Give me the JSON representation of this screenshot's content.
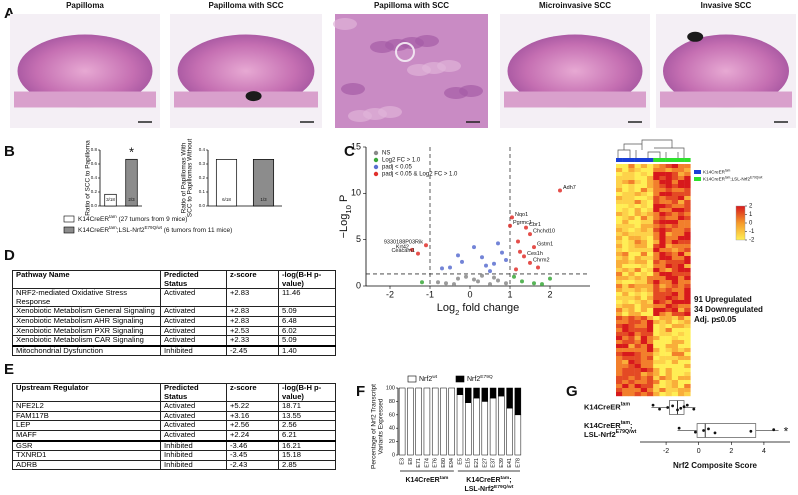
{
  "panel_labels": [
    "A",
    "B",
    "C",
    "D",
    "E",
    "F",
    "G"
  ],
  "images": [
    {
      "title": "Papilloma"
    },
    {
      "title": "Papilloma with SCC"
    },
    {
      "title": "Papilloma with SCC"
    },
    {
      "title": "Microinvasive SCC"
    },
    {
      "title": "Invasive SCC"
    }
  ],
  "panel_b_legend": [
    {
      "color": "#ffffff",
      "label": [
        {
          "text": "K14CreER"
        },
        {
          "text": "tam",
          "sup": true
        },
        {
          "text": " (27 tumors from 9 mice)"
        }
      ]
    },
    {
      "color": "#8c8c8c",
      "label": [
        {
          "text": "K14CreER"
        },
        {
          "text": "tam",
          "sup": true
        },
        {
          "text": ";LSL-Nrf2"
        },
        {
          "text": "E79Q/wt",
          "sup": true
        },
        {
          "text": " (6 tumors from 11 mice)"
        }
      ]
    }
  ],
  "chart_data": [
    {
      "type": "bar",
      "ylabel": [
        "Ratio of SCC to Papilloma"
      ],
      "categories": [
        null,
        null
      ],
      "values": [
        0.167,
        0.667
      ],
      "value_labels": [
        "3/18",
        "2/3"
      ],
      "colors": [
        "#ffffff",
        "#8c8c8c"
      ],
      "annotation": "*",
      "ylim": [
        0,
        0.8
      ],
      "yticks": [
        {
          "value": 0,
          "label": "0.0"
        },
        {
          "value": 0.2,
          "label": "0.2"
        },
        {
          "value": 0.4,
          "label": "0.4"
        },
        {
          "value": 0.6,
          "label": "0.6"
        },
        {
          "value": 0.8,
          "label": "0.8"
        }
      ]
    },
    {
      "type": "bar",
      "ylabel": [
        "Ratio of Papillomas With",
        "SCC to Papillomas Without"
      ],
      "categories": [
        null,
        null
      ],
      "values": [
        0.333,
        0.333
      ],
      "value_labels": [
        "6/18",
        "1/3"
      ],
      "colors": [
        "#ffffff",
        "#8c8c8c"
      ],
      "ylim": [
        0,
        0.4
      ],
      "yticks": [
        {
          "value": 0,
          "label": "0.0"
        },
        {
          "value": 0.1,
          "label": "0.1"
        },
        {
          "value": 0.2,
          "label": "0.2"
        },
        {
          "value": 0.3,
          "label": "0.3"
        },
        {
          "value": 0.4,
          "label": "0.4"
        }
      ]
    },
    {
      "type": "volcano",
      "xlabel": [
        {
          "text": "Log"
        },
        {
          "text": "2",
          "sub": true
        },
        {
          "text": " fold  change"
        }
      ],
      "ylabel": [
        {
          "text": "−Log"
        },
        {
          "text": "10",
          "sub": true
        },
        {
          "text": " P"
        }
      ],
      "xlim": [
        -2.6,
        3.0
      ],
      "xticks": [
        -2,
        -1,
        0,
        1,
        2
      ],
      "ylim": [
        0,
        15
      ],
      "yticks": [
        0,
        5,
        10,
        15
      ],
      "thresholds": {
        "x": [
          -1,
          1
        ],
        "y": 1.3
      },
      "series": [
        {
          "name": "NS",
          "color": "#8a8a8a",
          "x": [
            -0.6,
            -0.3,
            0.2,
            0.5,
            -0.1,
            0.7,
            -0.8,
            0.3,
            0.9,
            -0.4,
            0.1,
            0.6
          ],
          "y": [
            0.3,
            0.8,
            0.5,
            0.2,
            1.0,
            0.6,
            0.4,
            1.1,
            0.3,
            0.2,
            0.7,
            0.9
          ]
        },
        {
          "name": "Log2 FC > 1.0",
          "color": "#3aa83a",
          "x": [
            1.3,
            1.6,
            2.0,
            -1.2,
            1.1,
            1.8
          ],
          "y": [
            0.5,
            0.3,
            0.8,
            0.4,
            1.0,
            0.2
          ]
        },
        {
          "name": "padj < 0.05",
          "color": "#5a6fd0",
          "x": [
            -0.5,
            -0.2,
            0.3,
            0.6,
            0.8,
            -0.7,
            0.1,
            0.4,
            -0.3,
            0.7,
            0.9,
            0.5
          ],
          "y": [
            2.0,
            2.6,
            3.1,
            2.4,
            3.6,
            1.9,
            4.2,
            2.2,
            3.3,
            4.6,
            2.8,
            1.6
          ]
        },
        {
          "name": "padj < 0.05 & Log2 FC > 1.0",
          "color": "#e0302c",
          "x": [
            2.25,
            1.05,
            1.0,
            1.4,
            1.5,
            1.6,
            1.25,
            1.5,
            -1.45,
            -1.3,
            -1.1,
            1.2,
            1.7,
            1.35,
            1.15
          ],
          "y": [
            10.3,
            7.4,
            6.5,
            6.3,
            5.6,
            4.2,
            3.7,
            2.5,
            3.9,
            3.5,
            4.4,
            4.8,
            2.0,
            3.2,
            1.8
          ],
          "labels": [
            "Adh7",
            "Nqo1",
            "Pgrmc1",
            "Cbr1",
            "Chchd10",
            "Gstm1",
            null,
            "Chrm2",
            "Krt42",
            "Ceacam1",
            "9330188P03Rik",
            null,
            null,
            "Ces1h",
            null
          ]
        }
      ]
    },
    {
      "type": "stacked_bar",
      "ylabel": [
        "Percentage of Nrf2 Transcript",
        "Variants Expressed"
      ],
      "categories": [
        "E3",
        "E8",
        "E71",
        "E74",
        "E76",
        "E80",
        "E94",
        "E5",
        "E15",
        "E21",
        "E27",
        "E37",
        "E39",
        "E41",
        "E78"
      ],
      "groups": [
        {
          "size": 7,
          "label": [
            [
              {
                "text": "K14CreER"
              },
              {
                "text": "tam",
                "sup": true
              }
            ]
          ]
        },
        {
          "size": 8,
          "label": [
            [
              {
                "text": "K14CreER"
              },
              {
                "text": "tam",
                "sup": true
              },
              {
                "text": ";"
              }
            ],
            [
              {
                "text": "LSL-Nrf2"
              },
              {
                "text": "E79Q/wt",
                "sup": true
              }
            ]
          ]
        }
      ],
      "series": [
        {
          "name": [
            {
              "text": "Nrf2"
            },
            {
              "text": "wt",
              "sup": true
            }
          ],
          "color": "#ffffff",
          "values": [
            100,
            100,
            100,
            100,
            100,
            100,
            100,
            90,
            78,
            85,
            80,
            85,
            88,
            70,
            60
          ]
        },
        {
          "name": [
            {
              "text": "Nrf2"
            },
            {
              "text": "E79Q",
              "sup": true
            }
          ],
          "color": "#000000",
          "values": [
            0,
            0,
            0,
            0,
            0,
            0,
            0,
            10,
            22,
            15,
            20,
            15,
            12,
            30,
            40
          ]
        }
      ],
      "ylim": [
        0,
        100
      ],
      "yticks": [
        0,
        20,
        40,
        60,
        80,
        100
      ]
    },
    {
      "type": "box",
      "xlabel": "Nrf2 Composite Score",
      "xlim": [
        -3.6,
        5.6
      ],
      "xticks": [
        -2,
        0,
        2,
        4
      ],
      "groups": [
        {
          "label": [
            [
              {
                "text": "K14CreER"
              },
              {
                "text": "tam",
                "sup": true
              }
            ]
          ],
          "min": -2.9,
          "q1": -1.8,
          "median": -1.3,
          "q3": -0.9,
          "max": -0.2,
          "points": [
            -2.8,
            -2.4,
            -1.9,
            -1.6,
            -1.3,
            -1.1,
            -0.9,
            -0.7,
            -0.3
          ]
        },
        {
          "label": [
            [
              {
                "text": "K14CreER"
              },
              {
                "text": "tam",
                "sup": true
              },
              {
                "text": ";"
              }
            ],
            [
              {
                "text": "LSL-Nrf2"
              },
              {
                "text": "E79Q/wt",
                "sup": true
              }
            ]
          ],
          "min": -1.3,
          "q1": -0.1,
          "median": 0.4,
          "q3": 3.5,
          "max": 4.9,
          "annotation": "*",
          "points": [
            -1.2,
            -0.2,
            0.3,
            0.6,
            1.0,
            3.2,
            4.6
          ]
        }
      ]
    }
  ],
  "heatmap": {
    "legend": [
      {
        "color": "#1a3fd6",
        "label": [
          {
            "text": "K14CreER"
          },
          {
            "text": "tam",
            "sup": true
          }
        ]
      },
      {
        "color": "#2ee02e",
        "label": [
          {
            "text": "K14CreER"
          },
          {
            "text": "tam",
            "sup": true
          },
          {
            "text": ";LSL-Nrf2"
          },
          {
            "text": "E79Q/wt",
            "sup": true
          }
        ]
      }
    ],
    "colorbar_range": [
      -2,
      2
    ],
    "colorbar_ticks": [
      2,
      1,
      0,
      {
        "value": -1,
        "label": "-1"
      },
      {
        "value": -2,
        "label": "-2"
      }
    ],
    "notes": [
      "91 Upregulated",
      "34 Downregulated",
      "Adj. p≤0.05"
    ]
  },
  "tables": [
    {
      "header": [
        "Pathway Name",
        "Predicted Status",
        "z-score",
        "-log(B-H p-value)"
      ],
      "rows": [
        [
          "NRF2-mediated Oxidative Stress Response",
          "Activated",
          "+2.83",
          "11.46"
        ],
        [
          "Xenobiotic Metabolism General Signaling",
          "Activated",
          "+2.83",
          "5.09"
        ],
        [
          "Xenobiotic Metabolism AHR Signaling",
          "Activated",
          "+2.83",
          "6.48"
        ],
        [
          "Xenobiotic Metabolism PXR Signaling",
          "Activated",
          "+2.53",
          "6.02"
        ],
        [
          "Xenobiotic Metabolism CAR Signaling",
          "Activated",
          "+2.33",
          "5.09"
        ],
        [
          "Mitochondrial Dysfunction",
          "Inhibited",
          "-2.45",
          "1.40"
        ]
      ]
    },
    {
      "header": [
        "Upstream Regulator",
        "Predicted Status",
        "z-score",
        "-log(B-H p-value)"
      ],
      "rows": [
        [
          "NFE2L2",
          "Activated",
          "+5.22",
          "18.71"
        ],
        [
          "FAM117B",
          "Activated",
          "+3.16",
          "13.55"
        ],
        [
          "LEP",
          "Activated",
          "+2.56",
          "2.56"
        ],
        [
          "MAFF",
          "Activated",
          "+2.24",
          "6.21"
        ],
        [
          "GSR",
          "Inhibited",
          "-3.46",
          "16.21"
        ],
        [
          "TXNRD1",
          "Inhibited",
          "-3.45",
          "15.18"
        ],
        [
          "ADRB",
          "Inhibited",
          "-2.43",
          "2.85"
        ]
      ]
    }
  ]
}
